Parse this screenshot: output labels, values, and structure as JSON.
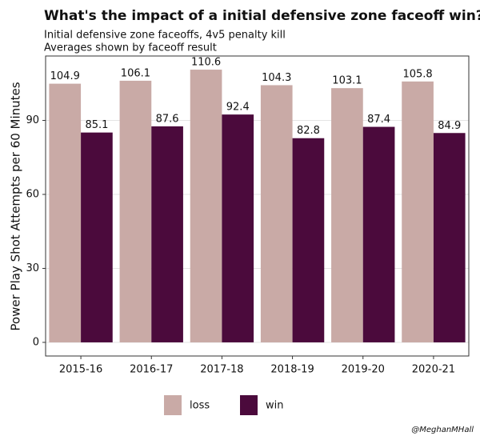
{
  "chart_data": {
    "type": "bar",
    "title": "What's the impact of a initial defensive zone faceoff win?",
    "subtitle": [
      "Initial defensive zone faceoffs, 4v5 penalty kill",
      "Averages shown by faceoff result"
    ],
    "y_label": "Power Play Shot Attempts per 60 Minutes",
    "caption": "@MeghanMHall",
    "categories": [
      "2015-16",
      "2016-17",
      "2017-18",
      "2018-19",
      "2019-20",
      "2020-21"
    ],
    "series": [
      {
        "name": "loss",
        "color": "#c9aaa6",
        "values": [
          104.9,
          106.1,
          110.6,
          104.3,
          103.1,
          105.8
        ]
      },
      {
        "name": "win",
        "color": "#4b0a3c",
        "values": [
          85.1,
          87.6,
          92.4,
          82.8,
          87.4,
          84.9
        ]
      }
    ],
    "ylim": [
      -5.53,
      116.13
    ],
    "yticks": [
      0,
      30,
      60,
      90
    ],
    "grid": true,
    "legend": "bottom"
  }
}
